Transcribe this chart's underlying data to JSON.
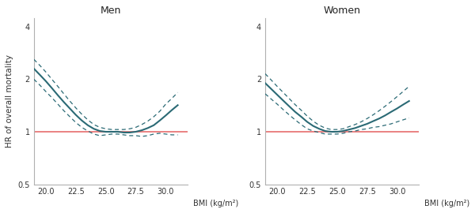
{
  "title_men": "Men",
  "title_women": "Women",
  "xlabel": "BMI (kg/m²)",
  "ylabel": "HR of overall mortality",
  "xlim": [
    19.0,
    31.8
  ],
  "ylim_log": [
    -0.301,
    0.623
  ],
  "xticks": [
    20.0,
    22.5,
    25.0,
    27.5,
    30.0
  ],
  "yticks_val": [
    0.5,
    1.0,
    2.0,
    4.0
  ],
  "ytick_labels": [
    "0.5",
    "1",
    "2",
    "4"
  ],
  "ref_line_y": 1.0,
  "ref_line_color": "#e87878",
  "curve_color": "#2b6a75",
  "background_color": "#ffffff",
  "men_bmi": [
    19.0,
    19.5,
    20.0,
    20.5,
    21.0,
    21.5,
    22.0,
    22.5,
    23.0,
    23.5,
    24.0,
    24.5,
    25.0,
    25.5,
    26.0,
    26.5,
    27.0,
    27.5,
    28.0,
    28.5,
    29.0,
    29.5,
    30.0,
    30.5,
    31.0
  ],
  "men_hr": [
    2.3,
    2.12,
    1.95,
    1.78,
    1.62,
    1.48,
    1.36,
    1.25,
    1.16,
    1.09,
    1.04,
    1.01,
    1.0,
    1.0,
    1.0,
    0.99,
    0.99,
    1.0,
    1.02,
    1.05,
    1.09,
    1.16,
    1.24,
    1.33,
    1.42
  ],
  "men_ci_up": [
    2.6,
    2.4,
    2.2,
    2.0,
    1.82,
    1.65,
    1.5,
    1.37,
    1.26,
    1.17,
    1.1,
    1.06,
    1.04,
    1.03,
    1.03,
    1.03,
    1.04,
    1.06,
    1.1,
    1.15,
    1.22,
    1.31,
    1.44,
    1.55,
    1.68
  ],
  "men_ci_lo": [
    2.0,
    1.85,
    1.7,
    1.57,
    1.44,
    1.32,
    1.22,
    1.13,
    1.06,
    1.01,
    0.97,
    0.95,
    0.96,
    0.97,
    0.97,
    0.96,
    0.95,
    0.95,
    0.94,
    0.95,
    0.97,
    0.98,
    0.97,
    0.96,
    0.96
  ],
  "women_bmi": [
    19.0,
    19.5,
    20.0,
    20.5,
    21.0,
    21.5,
    22.0,
    22.5,
    23.0,
    23.5,
    24.0,
    24.5,
    25.0,
    25.5,
    26.0,
    26.5,
    27.0,
    27.5,
    28.0,
    28.5,
    29.0,
    29.5,
    30.0,
    30.5,
    31.0
  ],
  "women_hr": [
    1.9,
    1.76,
    1.63,
    1.51,
    1.4,
    1.3,
    1.22,
    1.14,
    1.08,
    1.04,
    1.01,
    1.0,
    1.0,
    1.01,
    1.03,
    1.05,
    1.08,
    1.11,
    1.15,
    1.19,
    1.24,
    1.3,
    1.36,
    1.43,
    1.5
  ],
  "women_ci_up": [
    2.15,
    1.98,
    1.82,
    1.68,
    1.55,
    1.43,
    1.33,
    1.23,
    1.15,
    1.09,
    1.05,
    1.03,
    1.03,
    1.04,
    1.07,
    1.1,
    1.14,
    1.19,
    1.25,
    1.32,
    1.4,
    1.49,
    1.59,
    1.7,
    1.82
  ],
  "women_ci_lo": [
    1.65,
    1.54,
    1.44,
    1.34,
    1.25,
    1.17,
    1.1,
    1.04,
    1.01,
    0.99,
    0.97,
    0.97,
    0.97,
    0.98,
    1.0,
    1.01,
    1.03,
    1.04,
    1.06,
    1.07,
    1.09,
    1.11,
    1.14,
    1.17,
    1.2
  ]
}
